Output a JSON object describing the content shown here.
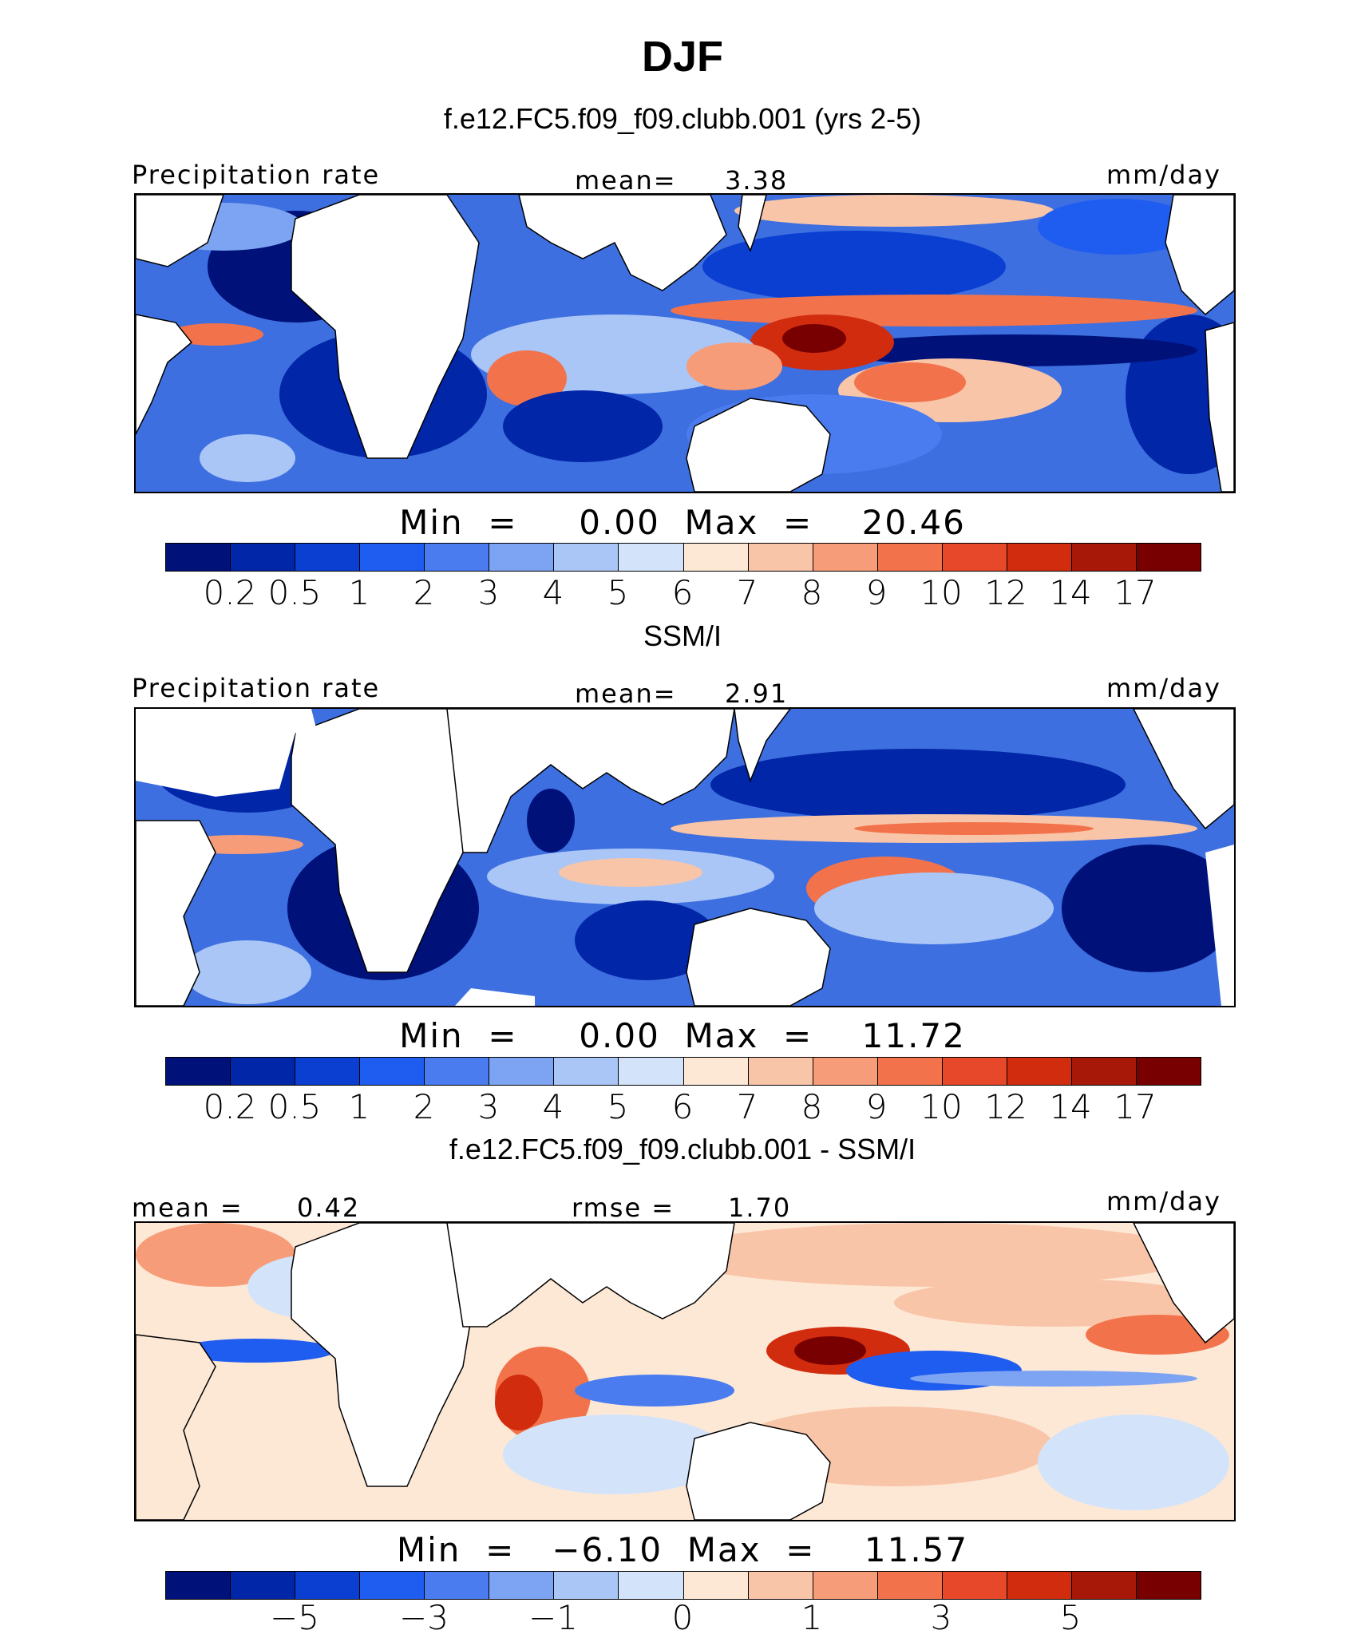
{
  "title": "DJF",
  "panels": [
    {
      "subtitle": "f.e12.FC5.f09_f09.clubb.001 (yrs 2-5)",
      "left_label": "Precipitation rate",
      "center_label": "mean=",
      "center_value": "3.38",
      "right_label": "mm/day",
      "minmax": "Min  =     0.00  Max  =    20.46",
      "colorbar_ticks": [
        "0.2",
        "0.5",
        "1",
        "2",
        "3",
        "4",
        "5",
        "6",
        "7",
        "8",
        "9",
        "10",
        "12",
        "14",
        "17"
      ]
    },
    {
      "subtitle": "SSM/I",
      "left_label": "Precipitation rate",
      "center_label": "mean=",
      "center_value": "2.91",
      "right_label": "mm/day",
      "minmax": "Min  =     0.00  Max  =    11.72",
      "colorbar_ticks": [
        "0.2",
        "0.5",
        "1",
        "2",
        "3",
        "4",
        "5",
        "6",
        "7",
        "8",
        "9",
        "10",
        "12",
        "14",
        "17"
      ]
    },
    {
      "subtitle": "f.e12.FC5.f09_f09.clubb.001 - SSM/I",
      "left_label": "mean =",
      "left_value": "0.42",
      "center_label": "rmse =",
      "center_value": "1.70",
      "right_label": "mm/day",
      "minmax": "Min  =   −6.10  Max  =    11.57",
      "colorbar_ticks": [
        "−5",
        "−3",
        "−1",
        "0",
        "1",
        "3",
        "5"
      ]
    }
  ],
  "colors": {
    "abs_scale": [
      "#00127a",
      "#0226a8",
      "#0a3fd2",
      "#1f5cf0",
      "#4a7cf0",
      "#7da4f2",
      "#aac6f6",
      "#d3e4fa",
      "#fde8d6",
      "#f9c5a8",
      "#f79c78",
      "#f2734b",
      "#e8482a",
      "#d12c0e",
      "#a81808",
      "#780000"
    ],
    "diff_scale": [
      "#00127a",
      "#0226a8",
      "#0a3fd2",
      "#1f5cf0",
      "#4a7cf0",
      "#7da4f2",
      "#aac6f6",
      "#d3e4fa",
      "#fde8d6",
      "#f9c5a8",
      "#f79c78",
      "#f2734b",
      "#e8482a",
      "#d12c0e",
      "#a81808",
      "#780000"
    ]
  }
}
